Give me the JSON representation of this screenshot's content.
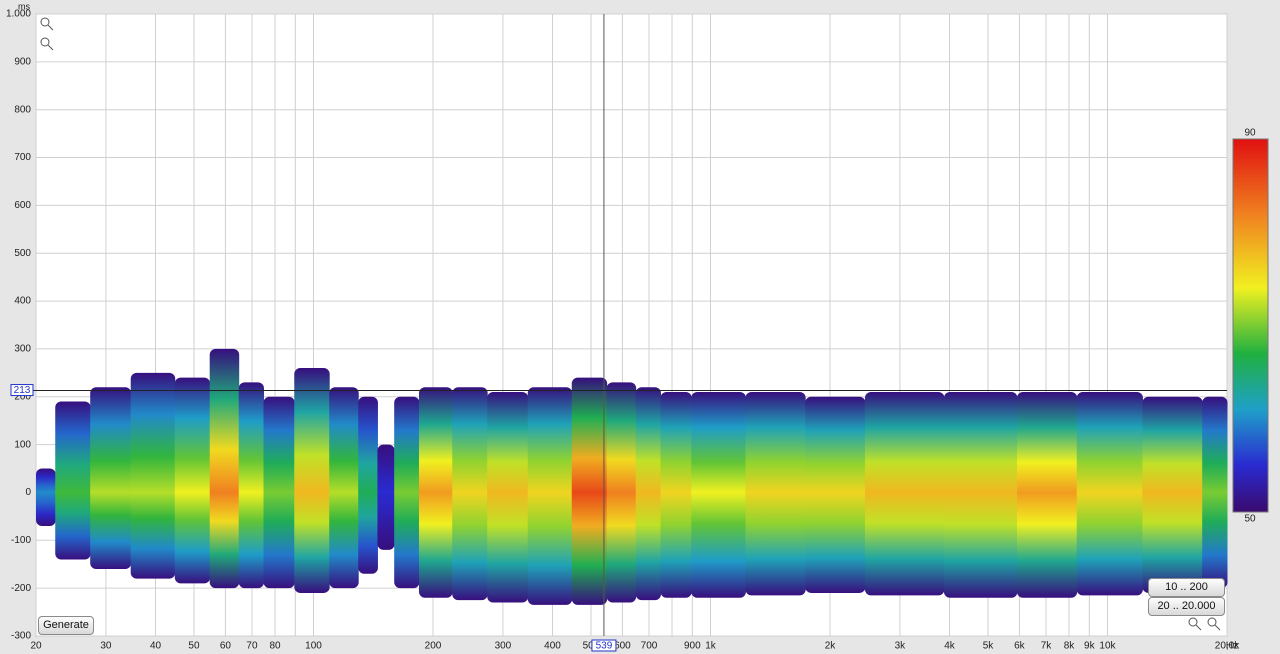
{
  "chart_data": {
    "type": "spectrogram",
    "y_unit": "ms",
    "x_unit": "Hz",
    "xlim": [
      20,
      20000
    ],
    "ylim": [
      -300,
      1000
    ],
    "log_x": true,
    "grid": true,
    "yticks": [
      -300,
      -200,
      -100,
      0,
      100,
      200,
      300,
      400,
      500,
      600,
      700,
      800,
      900,
      {
        "value": 1000,
        "label": "1.000"
      }
    ],
    "xticks": [
      20,
      30,
      40,
      50,
      60,
      70,
      80,
      100,
      200,
      300,
      400,
      500,
      600,
      700,
      900,
      {
        "value": 1000,
        "label": "1k"
      },
      {
        "value": 2000,
        "label": "2k"
      },
      {
        "value": 3000,
        "label": "3k"
      },
      {
        "value": 4000,
        "label": "4k"
      },
      {
        "value": 5000,
        "label": "5k"
      },
      {
        "value": 6000,
        "label": "6k"
      },
      {
        "value": 7000,
        "label": "7k"
      },
      {
        "value": 8000,
        "label": "8k"
      },
      {
        "value": 9000,
        "label": "9k"
      },
      {
        "value": 10000,
        "label": "10k"
      },
      {
        "value": 20000,
        "label": "20,0k"
      }
    ],
    "xgrid_minor": [
      90,
      800
    ],
    "x": [
      20,
      25,
      30,
      40,
      50,
      60,
      70,
      80,
      100,
      120,
      140,
      150,
      170,
      200,
      250,
      300,
      400,
      500,
      600,
      700,
      800,
      1000,
      1500,
      2000,
      3000,
      5000,
      7000,
      10000,
      15000,
      20000
    ],
    "top": [
      50,
      190,
      220,
      250,
      240,
      300,
      230,
      200,
      260,
      220,
      200,
      100,
      200,
      220,
      220,
      210,
      220,
      240,
      230,
      220,
      210,
      210,
      210,
      200,
      210,
      210,
      210,
      210,
      200,
      200
    ],
    "bottom": [
      -70,
      -140,
      -160,
      -180,
      -190,
      -200,
      -200,
      -200,
      -210,
      -200,
      -170,
      -120,
      -200,
      -220,
      -225,
      -230,
      -235,
      -235,
      -230,
      -225,
      -220,
      -220,
      -215,
      -210,
      -215,
      -220,
      -220,
      -215,
      -210,
      -200
    ],
    "level": [
      60,
      68,
      72,
      72,
      74,
      82,
      74,
      70,
      78,
      72,
      66,
      55,
      70,
      80,
      76,
      78,
      76,
      86,
      82,
      78,
      76,
      74,
      76,
      76,
      78,
      78,
      80,
      76,
      78,
      70
    ],
    "clim": [
      50,
      90
    ],
    "cursor": {
      "x": 539,
      "y": 213
    },
    "buttons": [
      "Generate",
      "10 .. 200",
      "20 .. 20.000"
    ]
  }
}
